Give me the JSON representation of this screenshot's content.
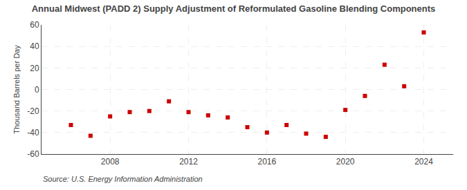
{
  "chart_data": {
    "type": "scatter",
    "title": "Annual Midwest (PADD 2) Supply Adjustment of Reformulated Gasoline Blending Components",
    "ylabel": "Thousand Barrels per Day",
    "annotations": [
      "Source: U.S. Energy Information Administration"
    ],
    "x": [
      2006,
      2007,
      2008,
      2009,
      2010,
      2011,
      2012,
      2013,
      2014,
      2015,
      2016,
      2017,
      2018,
      2019,
      2020,
      2021,
      2022,
      2023,
      2024
    ],
    "values": [
      -33,
      -43,
      -25,
      -21,
      -20,
      -11,
      -21,
      -24,
      -26,
      -35,
      -40,
      -33,
      -41,
      -44,
      -19,
      -6,
      23,
      3,
      53
    ],
    "color": "#cc0000",
    "marker": "square",
    "xlim": [
      2004.5,
      2025.5
    ],
    "xticks": [
      2008,
      2012,
      2016,
      2020,
      2024
    ],
    "ylim": [
      -60,
      60
    ],
    "yticks": [
      -60,
      -40,
      -20,
      0,
      20,
      40,
      60
    ],
    "grid": true
  }
}
